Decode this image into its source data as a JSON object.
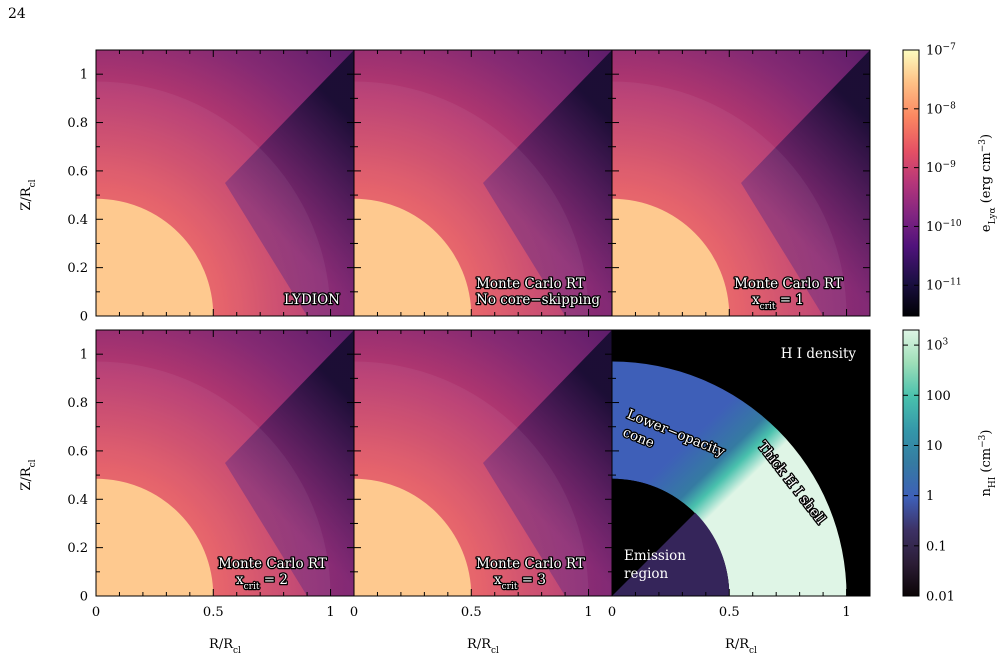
{
  "page_number": "24",
  "chart_data": {
    "type": "heatmap",
    "grid_layout": "2 rows x 3 columns",
    "panels": [
      {
        "id": "lydion",
        "quantity": "Lya energy density",
        "label_lines": [
          "LYDION"
        ]
      },
      {
        "id": "mc-no-core-skipping",
        "quantity": "Lya energy density",
        "label_lines": [
          "Monte Carlo RT",
          "No core−skipping"
        ]
      },
      {
        "id": "mc-xcrit-1",
        "quantity": "Lya energy density",
        "label_lines": [
          "Monte Carlo RT",
          "x_crit = 1"
        ]
      },
      {
        "id": "mc-xcrit-2",
        "quantity": "Lya energy density",
        "label_lines": [
          "Monte Carlo RT",
          "x_crit = 2"
        ]
      },
      {
        "id": "mc-xcrit-3",
        "quantity": "Lya energy density",
        "label_lines": [
          "Monte Carlo RT",
          "x_crit = 3"
        ]
      },
      {
        "id": "hi-density",
        "quantity": "H I density",
        "label_lines": [
          "H I density"
        ],
        "annotations": [
          "Lower−opacity cone",
          "Thick H I shell",
          "Emission region"
        ]
      }
    ],
    "xlabel": "R/R_cl",
    "ylabel": "Z/R_cl",
    "xlim": [
      0,
      1.1
    ],
    "ylim": [
      0,
      1.1
    ],
    "x_ticks": [
      "0",
      "0.5",
      "1"
    ],
    "y_ticks": [
      "0",
      "0.2",
      "0.4",
      "0.6",
      "0.8",
      "1"
    ],
    "geometry": {
      "emission_region_radius": 0.5,
      "shell_outer_radius": 1.0,
      "cone_boundary_angle_deg_from_z_axis": 45
    },
    "colorbars": [
      {
        "id": "lya",
        "label": "e_Lya (erg cm^-3)",
        "scale": "log",
        "colormap": "magma",
        "ticks": [
          "10^-7",
          "10^-8",
          "10^-9",
          "10^-10",
          "10^-11"
        ],
        "range": [
          3e-12,
          1e-07
        ]
      },
      {
        "id": "hi",
        "label": "n_HI (cm^-3)",
        "scale": "log",
        "colormap": "mako",
        "ticks": [
          "10^3",
          "100",
          "10",
          "1",
          "0.1",
          "0.01"
        ],
        "range": [
          0.01,
          2000
        ]
      }
    ],
    "hi_values": {
      "emission_region": 0.05,
      "cone": 1,
      "shell": 1000,
      "outside": 0.01
    },
    "colors": {
      "lya_core": "#fec98f",
      "lya_mid": "#f3785f",
      "lya_dark": "#1a0d34",
      "hi_outside": "#000000",
      "hi_cone": "#3e5fb8",
      "hi_shell": "#dff5e6",
      "hi_emission": "#35255a"
    }
  }
}
